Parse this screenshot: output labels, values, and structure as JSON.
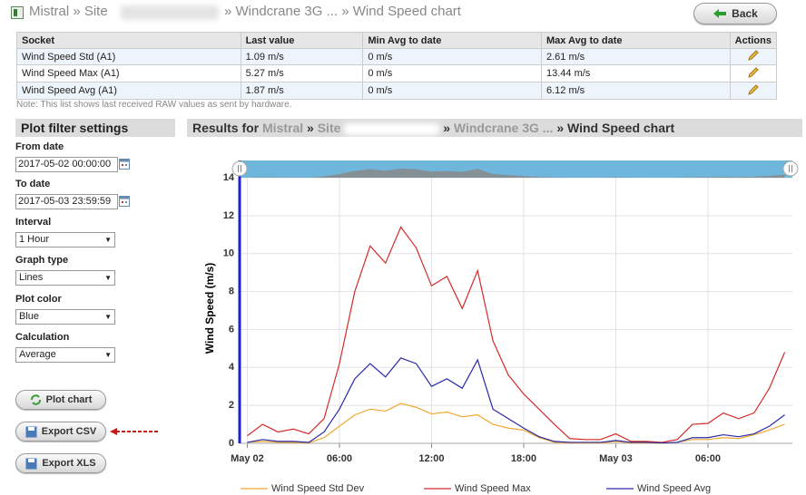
{
  "header": {
    "breadcrumb_start": "Mistral » Site",
    "breadcrumb_end": "» Windcrane 3G ... » Wind Speed chart",
    "back_button": "Back"
  },
  "sockets_table": {
    "columns": [
      "Socket",
      "Last value",
      "Min Avg to date",
      "Max Avg to date",
      "Actions"
    ],
    "rows": [
      [
        "Wind Speed Std (A1)",
        "1.09 m/s",
        "0 m/s",
        "2.61 m/s"
      ],
      [
        "Wind Speed Max (A1)",
        "5.27 m/s",
        "0 m/s",
        "13.44 m/s"
      ],
      [
        "Wind Speed Avg (A1)",
        "1.87 m/s",
        "0 m/s",
        "6.12 m/s"
      ]
    ],
    "note": "Note: This list shows last received RAW values as sent by hardware."
  },
  "filter_panel": {
    "title": "Plot filter settings",
    "from_date": {
      "label": "From date",
      "value": "2017-05-02 00:00:00"
    },
    "to_date": {
      "label": "To date",
      "value": "2017-05-03 23:59:59"
    },
    "interval": {
      "label": "Interval",
      "value": "1 Hour"
    },
    "graph_type": {
      "label": "Graph type",
      "value": "Lines"
    },
    "plot_color": {
      "label": "Plot color",
      "value": "Blue"
    },
    "calculation": {
      "label": "Calculation",
      "value": "Average"
    },
    "buttons": [
      "Plot chart",
      "Export CSV",
      "Export XLS"
    ]
  },
  "results_title": [
    "Results for",
    "Mistral",
    "»",
    "Site",
    "»",
    "Windcrane 3G ...",
    "» Wind Speed chart"
  ],
  "chart_data": {
    "type": "line",
    "y_label": "Wind Speed (m/s)",
    "x": [
      0,
      1,
      2,
      3,
      4,
      5,
      6,
      7,
      8,
      9,
      10,
      11,
      12,
      13,
      14,
      15,
      16,
      17,
      18,
      19,
      20,
      21,
      22,
      23,
      24,
      25,
      26,
      27,
      28,
      29,
      30,
      31,
      32,
      33,
      34,
      35
    ],
    "xlim": [
      -0.5,
      35.5
    ],
    "xticks": [
      {
        "value": 0,
        "label": "May 02"
      },
      {
        "value": 6,
        "label": "06:00"
      },
      {
        "value": 12,
        "label": "12:00"
      },
      {
        "value": 18,
        "label": "18:00"
      },
      {
        "value": 24,
        "label": "May 03"
      },
      {
        "value": 30,
        "label": "06:00"
      }
    ],
    "ylim": [
      0,
      14
    ],
    "yticks": [
      0,
      2,
      4,
      6,
      8,
      10,
      12,
      14
    ],
    "grid": true,
    "series": [
      {
        "name": "Wind Speed Std Dev",
        "color": "#f0a830",
        "values": [
          0.05,
          0.1,
          0.05,
          0.05,
          0.02,
          0.3,
          0.9,
          1.5,
          1.8,
          1.7,
          2.1,
          1.9,
          1.55,
          1.65,
          1.4,
          1.5,
          1.0,
          0.8,
          0.7,
          0.3,
          0.05,
          0.02,
          0.02,
          0.02,
          0.1,
          0.02,
          0.02,
          0.01,
          0.05,
          0.2,
          0.2,
          0.3,
          0.25,
          0.45,
          0.7,
          1.0
        ]
      },
      {
        "name": "Wind Speed Max",
        "color": "#d42a2a",
        "values": [
          0.4,
          1.0,
          0.6,
          0.75,
          0.5,
          1.3,
          4.2,
          8.0,
          10.4,
          9.5,
          11.4,
          10.3,
          8.3,
          8.8,
          7.1,
          9.1,
          5.4,
          3.6,
          2.6,
          1.8,
          1.0,
          0.25,
          0.2,
          0.2,
          0.5,
          0.1,
          0.1,
          0.05,
          0.2,
          1.0,
          1.05,
          1.6,
          1.3,
          1.6,
          2.9,
          4.8
        ]
      },
      {
        "name": "Wind Speed Avg",
        "color": "#2a2aa8",
        "values": [
          0.05,
          0.2,
          0.1,
          0.1,
          0.05,
          0.6,
          1.8,
          3.4,
          4.2,
          3.5,
          4.5,
          4.2,
          3.0,
          3.4,
          2.9,
          4.4,
          1.8,
          1.3,
          0.8,
          0.35,
          0.1,
          0.05,
          0.05,
          0.05,
          0.15,
          0.05,
          0.05,
          0.02,
          0.05,
          0.3,
          0.3,
          0.45,
          0.35,
          0.5,
          0.9,
          1.5
        ]
      }
    ]
  }
}
